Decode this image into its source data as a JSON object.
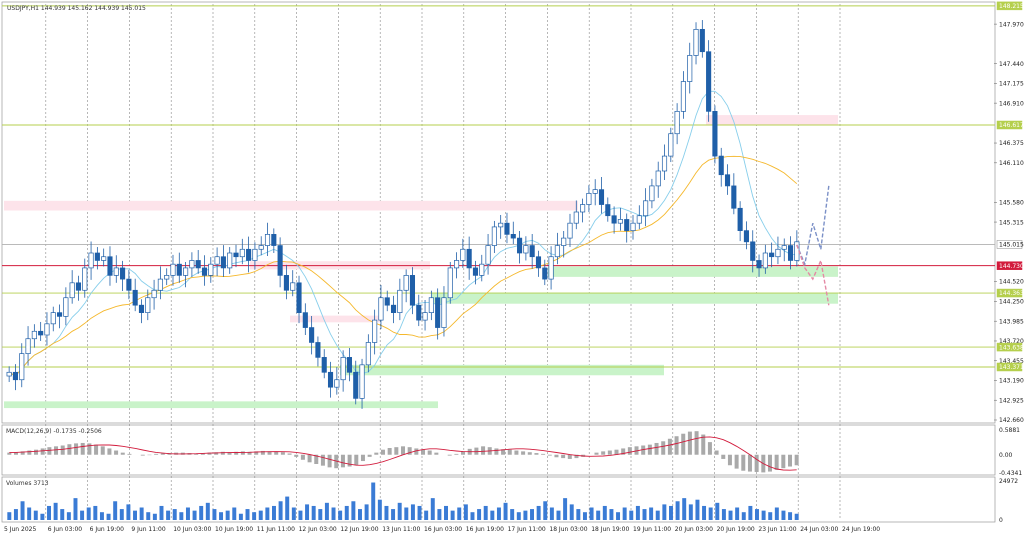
{
  "chart_data": [
    {
      "type": "candlestick",
      "title": "USDJPY,H1",
      "ohlc_readout": [
        "144.939",
        "145.162",
        "144.939",
        "145.015"
      ],
      "ylim": [
        142.66,
        148.24
      ],
      "y_ticks": [
        "147.970",
        "147.440",
        "147.175",
        "146.910",
        "146.375",
        "146.110",
        "145.580",
        "145.315",
        "144.520",
        "144.250",
        "143.985",
        "143.720",
        "143.455",
        "143.190",
        "142.925",
        "142.660"
      ],
      "x_ticks": [
        "5 Jun 2025",
        "6 Jun 03:00",
        "6 Jun 19:00",
        "9 Jun 11:00",
        "10 Jun 03:00",
        "10 Jun 19:00",
        "11 Jun 11:00",
        "12 Jun 03:00",
        "12 Jun 19:00",
        "13 Jun 11:00",
        "16 Jun 03:00",
        "16 Jun 19:00",
        "17 Jun 11:00",
        "18 Jun 03:00",
        "18 Jun 19:00",
        "19 Jun 11:00",
        "20 Jun 03:00",
        "20 Jun 19:00",
        "23 Jun 11:00",
        "24 Jun 03:00",
        "24 Jun 19:00"
      ],
      "levels": [
        {
          "value": 148.215,
          "label": "148.215",
          "color": "#b5cf4d"
        },
        {
          "value": 146.617,
          "label": "146.617",
          "color": "#b5cf4d"
        },
        {
          "value": 145.015,
          "label": "145.015",
          "color": "#b0b0b0"
        },
        {
          "value": 144.73,
          "label": "144.730",
          "color": "#d21b3c"
        },
        {
          "value": 144.363,
          "label": "144.363",
          "color": "#b5cf4d"
        },
        {
          "value": 143.638,
          "label": "143.638",
          "color": "#b5cf4d"
        },
        {
          "value": 143.371,
          "label": "143.371",
          "color": "#b5cf4d"
        }
      ],
      "zones": [
        {
          "type": "resistance",
          "from": 145.47,
          "to": 145.6,
          "color": "#fde3ea"
        },
        {
          "type": "resistance",
          "from": 146.62,
          "to": 146.75,
          "color": "#fde3ea"
        },
        {
          "type": "resistance",
          "from": 144.68,
          "to": 144.79,
          "color": "#fde3ea"
        },
        {
          "type": "resistance",
          "from": 143.97,
          "to": 144.06,
          "color": "#fde3ea"
        },
        {
          "type": "support",
          "from": 144.58,
          "to": 144.72,
          "color": "#c9f3c9"
        },
        {
          "type": "support",
          "from": 144.22,
          "to": 144.37,
          "color": "#c9f3c9"
        },
        {
          "type": "support",
          "from": 143.26,
          "to": 143.4,
          "color": "#c9f3c9"
        },
        {
          "type": "support",
          "from": 142.82,
          "to": 142.91,
          "color": "#c9f3c9"
        }
      ],
      "close_series": [
        143.3,
        143.2,
        143.55,
        143.75,
        143.85,
        143.8,
        143.95,
        144.1,
        144.05,
        144.3,
        144.5,
        144.4,
        144.7,
        144.9,
        144.8,
        144.85,
        144.6,
        144.7,
        144.55,
        144.4,
        144.2,
        144.1,
        144.3,
        144.4,
        144.55,
        144.6,
        144.75,
        144.6,
        144.7,
        144.8,
        144.7,
        144.6,
        144.75,
        144.85,
        144.7,
        144.9,
        144.85,
        144.95,
        144.8,
        144.95,
        145.0,
        145.15,
        145.0,
        144.6,
        144.4,
        144.5,
        144.1,
        143.9,
        143.7,
        143.5,
        143.3,
        143.1,
        143.2,
        143.5,
        143.3,
        142.95,
        143.4,
        143.7,
        144.0,
        144.3,
        144.2,
        144.1,
        144.4,
        144.6,
        144.2,
        144.0,
        144.1,
        144.3,
        143.9,
        144.3,
        144.7,
        144.8,
        144.95,
        144.7,
        144.6,
        144.75,
        145.0,
        145.25,
        145.3,
        145.15,
        145.1,
        144.9,
        145.0,
        144.85,
        144.7,
        144.55,
        144.85,
        145.0,
        145.1,
        145.3,
        145.45,
        145.55,
        145.7,
        145.75,
        145.55,
        145.4,
        145.3,
        145.35,
        145.2,
        145.3,
        145.4,
        145.6,
        145.8,
        146.0,
        146.2,
        146.5,
        146.8,
        147.2,
        147.55,
        147.9,
        147.6,
        146.8,
        146.2,
        145.95,
        145.8,
        145.5,
        145.2,
        145.05,
        144.8,
        144.7,
        144.9,
        144.85,
        144.95,
        145.0,
        144.8,
        145.05
      ],
      "close_series_note": "estimated price path",
      "ma_fast_color": "#87ceeb",
      "ma_slow_color": "#f5b82c",
      "forecast_up": [
        145.01,
        144.75,
        145.3,
        144.95,
        145.8
      ],
      "forecast_down": [
        145.01,
        144.7,
        144.55,
        144.8,
        144.2
      ],
      "forecast_up_color": "#7b90c7",
      "forecast_down_color": "#e48aa5"
    },
    {
      "type": "bar",
      "title": "MACD(12,26,9)",
      "readout": "MACD(12,26,9) -0.1735 -0.2506",
      "ylim": [
        -0.4341,
        0.5881
      ],
      "y_ticks": [
        "0.5881",
        "0.00",
        "-0.4341"
      ],
      "hist_color": "#a9a9a9",
      "signal_color": "#d21b3c",
      "hist_values": [
        0.05,
        0.06,
        0.08,
        0.1,
        0.12,
        0.15,
        0.18,
        0.2,
        0.22,
        0.25,
        0.27,
        0.28,
        0.27,
        0.24,
        0.2,
        0.15,
        0.1,
        0.05,
        0.02,
        0.0,
        -0.02,
        -0.01,
        0.02,
        0.03,
        0.04,
        0.05,
        0.05,
        0.04,
        0.03,
        0.04,
        0.05,
        0.06,
        0.07,
        0.06,
        0.07,
        0.08,
        0.07,
        0.08,
        0.09,
        0.08,
        0.07,
        0.06,
        0.03,
        -0.05,
        -0.12,
        -0.18,
        -0.22,
        -0.26,
        -0.3,
        -0.32,
        -0.3,
        -0.28,
        -0.25,
        -0.15,
        -0.05,
        0.05,
        0.12,
        0.16,
        0.18,
        0.2,
        0.18,
        0.15,
        0.12,
        0.1,
        0.05,
        0.0,
        -0.02,
        0.02,
        0.08,
        0.14,
        0.17,
        0.2,
        0.18,
        0.15,
        0.13,
        0.12,
        0.1,
        0.08,
        0.06,
        0.04,
        0.02,
        -0.02,
        -0.06,
        -0.08,
        -0.1,
        -0.08,
        -0.05,
        0.0,
        0.05,
        0.08,
        0.1,
        0.12,
        0.15,
        0.18,
        0.2,
        0.22,
        0.24,
        0.28,
        0.32,
        0.38,
        0.44,
        0.5,
        0.55,
        0.56,
        0.48,
        0.3,
        0.1,
        -0.1,
        -0.25,
        -0.33,
        -0.38,
        -0.4,
        -0.41,
        -0.42,
        -0.4,
        -0.36,
        -0.32,
        -0.28,
        -0.25
      ]
    },
    {
      "type": "bar",
      "title": "Volumes",
      "readout": "Volumes 3713",
      "ylim": [
        0,
        24972
      ],
      "y_ticks": [
        "24972",
        "0"
      ],
      "bar_color": "#3a7bd5",
      "values": [
        5000,
        7000,
        12000,
        8000,
        6000,
        4000,
        9000,
        11000,
        7000,
        5000,
        14000,
        6000,
        8000,
        9000,
        5000,
        4000,
        12000,
        7000,
        10000,
        6000,
        8000,
        5000,
        4000,
        9000,
        6000,
        7000,
        5000,
        8000,
        6000,
        9000,
        11000,
        7000,
        5000,
        6000,
        8000,
        4000,
        7000,
        5000,
        6000,
        8000,
        9000,
        12000,
        15000,
        8000,
        6000,
        10000,
        9000,
        7000,
        11000,
        8000,
        6000,
        9000,
        12000,
        7000,
        10000,
        24000,
        13000,
        9000,
        7000,
        11000,
        8000,
        10000,
        9000,
        6000,
        14000,
        7000,
        9000,
        6000,
        8000,
        10000,
        5000,
        7000,
        9000,
        6000,
        8000,
        11000,
        7000,
        5000,
        6000,
        7000,
        9000,
        12000,
        8000,
        6000,
        14000,
        10000,
        7000,
        5000,
        8000,
        6000,
        9000,
        7000,
        5000,
        8000,
        6000,
        9000,
        7000,
        8000,
        6000,
        10000,
        9000,
        12000,
        14000,
        10000,
        13000,
        9000,
        8000,
        11000,
        7000,
        6000,
        8000,
        5000,
        9000,
        7000,
        6000,
        5000,
        8000,
        6000,
        5000,
        4000
      ]
    }
  ]
}
